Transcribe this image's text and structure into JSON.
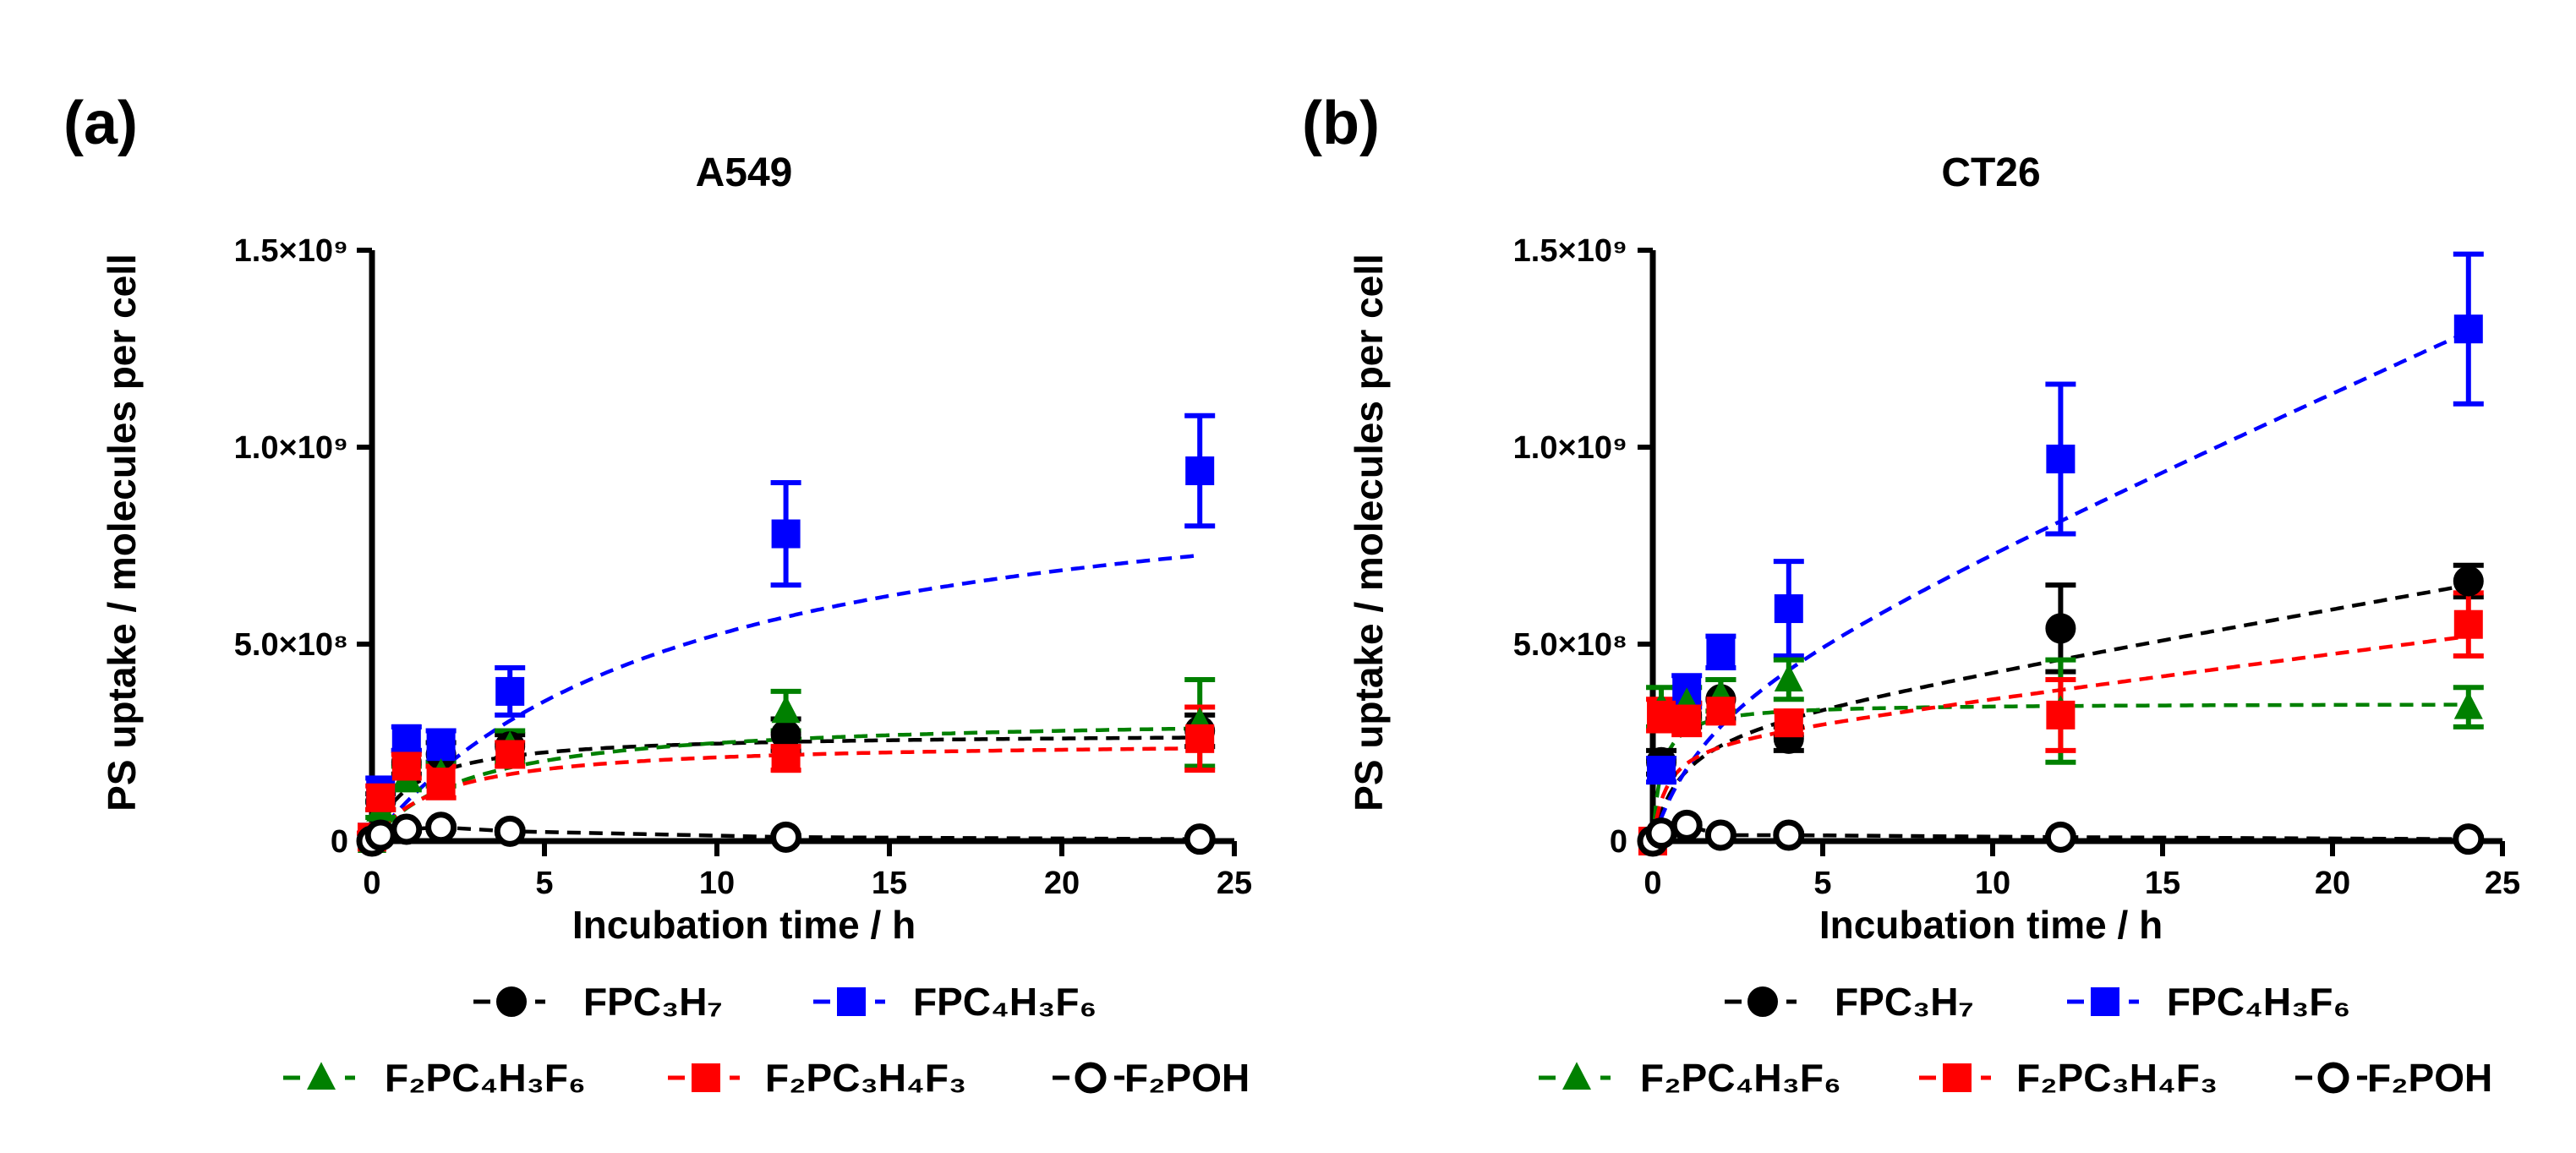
{
  "figure": {
    "panels": [
      {
        "label": "(a)",
        "title": "A549"
      },
      {
        "label": "(b)",
        "title": "CT26"
      }
    ],
    "ylabel": "PS uptake / molecules per cell",
    "xlabel": "Incubation time / h",
    "legend": [
      {
        "key": "FPC3H7",
        "text": "FPC₃H₇",
        "color": "#000000",
        "marker": "circle"
      },
      {
        "key": "FPC4H3F6",
        "text": "FPC₄H₃F₆",
        "color": "#0000ff",
        "marker": "square"
      },
      {
        "key": "F2PC4H3F6",
        "text": "F₂PC₄H₃F₆",
        "color": "#008000",
        "marker": "triangle"
      },
      {
        "key": "F2PC3H4F3",
        "text": "F₂PC₃H₄F₃",
        "color": "#ff0000",
        "marker": "square"
      },
      {
        "key": "F2POH",
        "text": "F₂POH",
        "color": "#000000",
        "marker": "open-circle"
      }
    ]
  },
  "chart_data": [
    {
      "type": "scatter",
      "title": "A549",
      "xlabel": "Incubation time / h",
      "ylabel": "PS uptake / molecules per cell",
      "xlim": [
        0,
        25
      ],
      "ylim": [
        0,
        1500000000.0
      ],
      "xticks": [
        0,
        5,
        10,
        15,
        20,
        25
      ],
      "xtick_labels": [
        "0",
        "5",
        "10",
        "15",
        "20",
        "25"
      ],
      "yticks": [
        0,
        500000000.0,
        1000000000.0,
        1500000000.0
      ],
      "ytick_labels": [
        "0",
        "5.0×10⁸",
        "1.0×10⁹",
        "1.5×10⁹"
      ],
      "series": [
        {
          "name": "FPC₃H₇",
          "color": "#000000",
          "marker": "circle",
          "x": [
            0,
            0.25,
            1,
            2,
            4,
            12,
            24
          ],
          "y": [
            0,
            100000000.0,
            200000000.0,
            220000000.0,
            240000000.0,
            270000000.0,
            280000000.0
          ],
          "err": [
            0,
            20000000.0,
            30000000.0,
            30000000.0,
            30000000.0,
            40000000.0,
            40000000.0
          ],
          "fit": {
            "type": "saturation",
            "ymax": 275000000.0,
            "k": 0.9
          }
        },
        {
          "name": "FPC₄H₃F₆",
          "color": "#0000ff",
          "marker": "square",
          "x": [
            0,
            0.25,
            1,
            2,
            4,
            12,
            24
          ],
          "y": [
            10000000.0,
            130000000.0,
            260000000.0,
            240000000.0,
            380000000.0,
            780000000.0,
            940000000.0
          ],
          "err": [
            10000000.0,
            30000000.0,
            30000000.0,
            40000000.0,
            60000000.0,
            130000000.0,
            140000000.0
          ],
          "fit": {
            "type": "saturation",
            "ymax": 1000000000.0,
            "k": 0.11
          }
        },
        {
          "name": "F₂PC₄H₃F₆",
          "color": "#008000",
          "marker": "triangle",
          "x": [
            0,
            0.25,
            1,
            2,
            4,
            12,
            24
          ],
          "y": [
            0,
            80000000.0,
            160000000.0,
            170000000.0,
            240000000.0,
            330000000.0,
            300000000.0
          ],
          "err": [
            0,
            20000000.0,
            30000000.0,
            30000000.0,
            40000000.0,
            50000000.0,
            110000000.0
          ],
          "fit": {
            "type": "saturation",
            "ymax": 320000000.0,
            "k": 0.35
          }
        },
        {
          "name": "F₂PC₃H₄F₃",
          "color": "#ff0000",
          "marker": "square",
          "x": [
            0,
            0.25,
            1,
            2,
            4,
            12,
            24
          ],
          "y": [
            10000000.0,
            110000000.0,
            190000000.0,
            150000000.0,
            220000000.0,
            210000000.0,
            260000000.0
          ],
          "err": [
            10000000.0,
            30000000.0,
            30000000.0,
            40000000.0,
            30000000.0,
            30000000.0,
            80000000.0
          ],
          "fit": {
            "type": "saturation",
            "ymax": 255000000.0,
            "k": 0.5
          }
        },
        {
          "name": "F₂POH",
          "color": "#000000",
          "marker": "open-circle",
          "x": [
            0,
            0.25,
            1,
            2,
            4,
            12,
            24
          ],
          "y": [
            0,
            15000000.0,
            30000000.0,
            35000000.0,
            25000000.0,
            10000000.0,
            5000000.0
          ],
          "err": [
            0,
            5000000.0,
            5000000.0,
            5000000.0,
            5000000.0,
            5000000.0,
            5000000.0
          ],
          "fit": {
            "type": "segments"
          }
        }
      ]
    },
    {
      "type": "scatter",
      "title": "CT26",
      "xlabel": "Incubation time / h",
      "ylabel": "PS uptake / molecules per cell",
      "xlim": [
        0,
        25
      ],
      "ylim": [
        0,
        1500000000.0
      ],
      "xticks": [
        0,
        5,
        10,
        15,
        20,
        25
      ],
      "xtick_labels": [
        "0",
        "5",
        "10",
        "15",
        "20",
        "25"
      ],
      "yticks": [
        0,
        500000000.0,
        1000000000.0,
        1500000000.0
      ],
      "ytick_labels": [
        "0",
        "5.0×10⁸",
        "1.0×10⁹",
        "1.5×10⁹"
      ],
      "series": [
        {
          "name": "FPC₃H₇",
          "color": "#000000",
          "marker": "circle",
          "x": [
            0,
            0.25,
            1,
            2,
            4,
            12,
            24
          ],
          "y": [
            0,
            200000000.0,
            320000000.0,
            360000000.0,
            260000000.0,
            540000000.0,
            660000000.0
          ],
          "err": [
            0,
            30000000.0,
            30000000.0,
            50000000.0,
            30000000.0,
            110000000.0,
            40000000.0
          ],
          "fit": {
            "type": "saturation_linear",
            "ymax": 300000000.0,
            "k": 1.2,
            "slope": 15000000.0
          }
        },
        {
          "name": "FPC₄H₃F₆",
          "color": "#0000ff",
          "marker": "square",
          "x": [
            0,
            0.25,
            1,
            2,
            4,
            12,
            24
          ],
          "y": [
            0,
            180000000.0,
            380000000.0,
            480000000.0,
            590000000.0,
            970000000.0,
            1300000000.0
          ],
          "err": [
            0,
            30000000.0,
            40000000.0,
            40000000.0,
            120000000.0,
            190000000.0,
            190000000.0
          ],
          "fit": {
            "type": "saturation_linear",
            "ymax": 410000000.0,
            "k": 0.55,
            "slope": 38000000.0
          }
        },
        {
          "name": "F₂PC₄H₃F₆",
          "color": "#008000",
          "marker": "triangle",
          "x": [
            0,
            0.25,
            1,
            2,
            4,
            12,
            24
          ],
          "y": [
            0,
            340000000.0,
            350000000.0,
            370000000.0,
            410000000.0,
            330000000.0,
            340000000.0
          ],
          "err": [
            0,
            50000000.0,
            40000000.0,
            40000000.0,
            50000000.0,
            130000000.0,
            50000000.0
          ],
          "fit": {
            "type": "saturation",
            "ymax": 350000000.0,
            "k": 4
          }
        },
        {
          "name": "F₂PC₃H₄F₃",
          "color": "#ff0000",
          "marker": "square",
          "x": [
            0,
            0.25,
            1,
            2,
            4,
            12,
            24
          ],
          "y": [
            0,
            320000000.0,
            310000000.0,
            330000000.0,
            300000000.0,
            320000000.0,
            550000000.0
          ],
          "err": [
            0,
            40000000.0,
            40000000.0,
            30000000.0,
            30000000.0,
            90000000.0,
            80000000.0
          ],
          "fit": {
            "type": "saturation_linear",
            "ymax": 260000000.0,
            "k": 2.5,
            "slope": 11000000.0
          }
        },
        {
          "name": "F₂POH",
          "color": "#000000",
          "marker": "open-circle",
          "x": [
            0,
            0.25,
            1,
            2,
            4,
            12,
            24
          ],
          "y": [
            0,
            20000000.0,
            40000000.0,
            15000000.0,
            15000000.0,
            10000000.0,
            5000000.0
          ],
          "err": [
            0,
            5000000.0,
            5000000.0,
            5000000.0,
            5000000.0,
            5000000.0,
            5000000.0
          ],
          "fit": {
            "type": "segments"
          }
        }
      ]
    }
  ]
}
